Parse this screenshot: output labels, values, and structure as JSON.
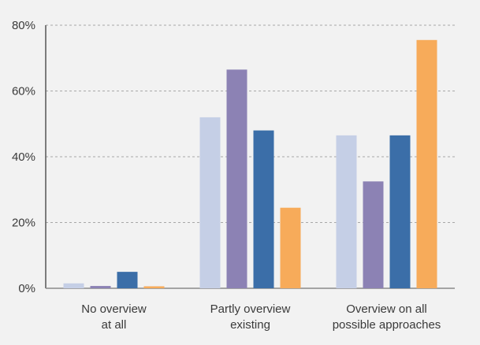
{
  "chart_data": {
    "type": "bar",
    "categories": [
      [
        "No overview",
        "at all"
      ],
      [
        "Partly overview",
        "existing"
      ],
      [
        "Overview on all",
        "possible approaches"
      ]
    ],
    "series": [
      {
        "color": "#c5cfe6",
        "values": [
          1.5,
          52,
          46.5
        ]
      },
      {
        "color": "#8c82b4",
        "values": [
          0.7,
          66.5,
          32.5
        ]
      },
      {
        "color": "#3b6ea8",
        "values": [
          5,
          48,
          46.5
        ]
      },
      {
        "color": "#f7ab5a",
        "values": [
          0.6,
          24.5,
          75.5
        ]
      }
    ],
    "yticks": [
      "0%",
      "20%",
      "40%",
      "60%",
      "80%"
    ],
    "ytick_values": [
      0,
      20,
      40,
      60,
      80
    ],
    "ylim": [
      0,
      80
    ],
    "grid": true,
    "xlabel": "",
    "ylabel": ""
  }
}
